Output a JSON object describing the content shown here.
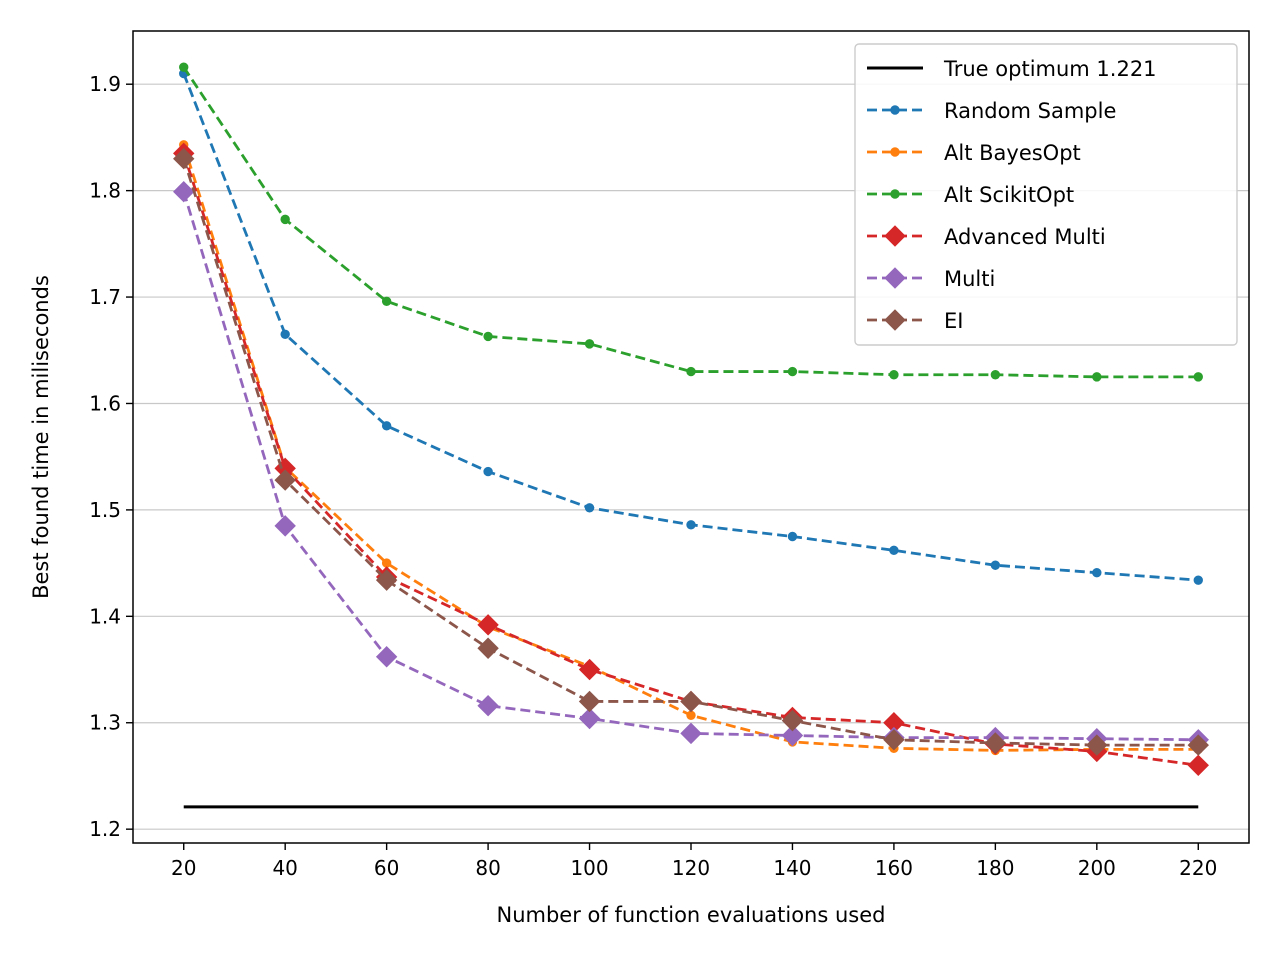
{
  "chart_data": {
    "type": "line",
    "title": "",
    "xlabel": "Number of function evaluations used",
    "ylabel": "Best found time in miliseconds",
    "x": [
      20,
      40,
      60,
      80,
      100,
      120,
      140,
      160,
      180,
      200,
      220
    ],
    "xticks": [
      "20",
      "40",
      "60",
      "80",
      "100",
      "120",
      "140",
      "160",
      "180",
      "200",
      "220"
    ],
    "yticks": [
      "1.2",
      "1.3",
      "1.4",
      "1.5",
      "1.6",
      "1.7",
      "1.8",
      "1.9"
    ],
    "xlim": [
      10,
      230
    ],
    "ylim": [
      1.187,
      1.95
    ],
    "grid": "horizontal",
    "legend_position": "top-right",
    "optimum": {
      "name": "True optimum 1.221",
      "value": 1.221,
      "color": "#000000"
    },
    "series": [
      {
        "name": "Random Sample",
        "color": "#1f77b4",
        "marker": "dot",
        "values": [
          1.91,
          1.665,
          1.579,
          1.536,
          1.502,
          1.486,
          1.475,
          1.462,
          1.448,
          1.441,
          1.434
        ]
      },
      {
        "name": "Alt BayesOpt",
        "color": "#ff7f0e",
        "marker": "dot",
        "values": [
          1.843,
          1.54,
          1.45,
          1.39,
          1.353,
          1.307,
          1.282,
          1.276,
          1.274,
          1.275,
          1.275
        ]
      },
      {
        "name": "Alt ScikitOpt",
        "color": "#2ca02c",
        "marker": "dot",
        "values": [
          1.916,
          1.773,
          1.696,
          1.663,
          1.656,
          1.63,
          1.63,
          1.627,
          1.627,
          1.625,
          1.625
        ]
      },
      {
        "name": "Advanced Multi",
        "color": "#d62728",
        "marker": "diamond",
        "values": [
          1.835,
          1.539,
          1.437,
          1.392,
          1.35,
          1.32,
          1.305,
          1.3,
          1.28,
          1.273,
          1.26
        ]
      },
      {
        "name": "Multi",
        "color": "#9467bd",
        "marker": "diamond",
        "values": [
          1.799,
          1.485,
          1.362,
          1.316,
          1.304,
          1.29,
          1.288,
          1.286,
          1.286,
          1.285,
          1.284
        ]
      },
      {
        "name": "EI",
        "color": "#8c564b",
        "marker": "diamond",
        "values": [
          1.83,
          1.528,
          1.434,
          1.37,
          1.32,
          1.32,
          1.302,
          1.284,
          1.281,
          1.279,
          1.279
        ]
      }
    ]
  }
}
